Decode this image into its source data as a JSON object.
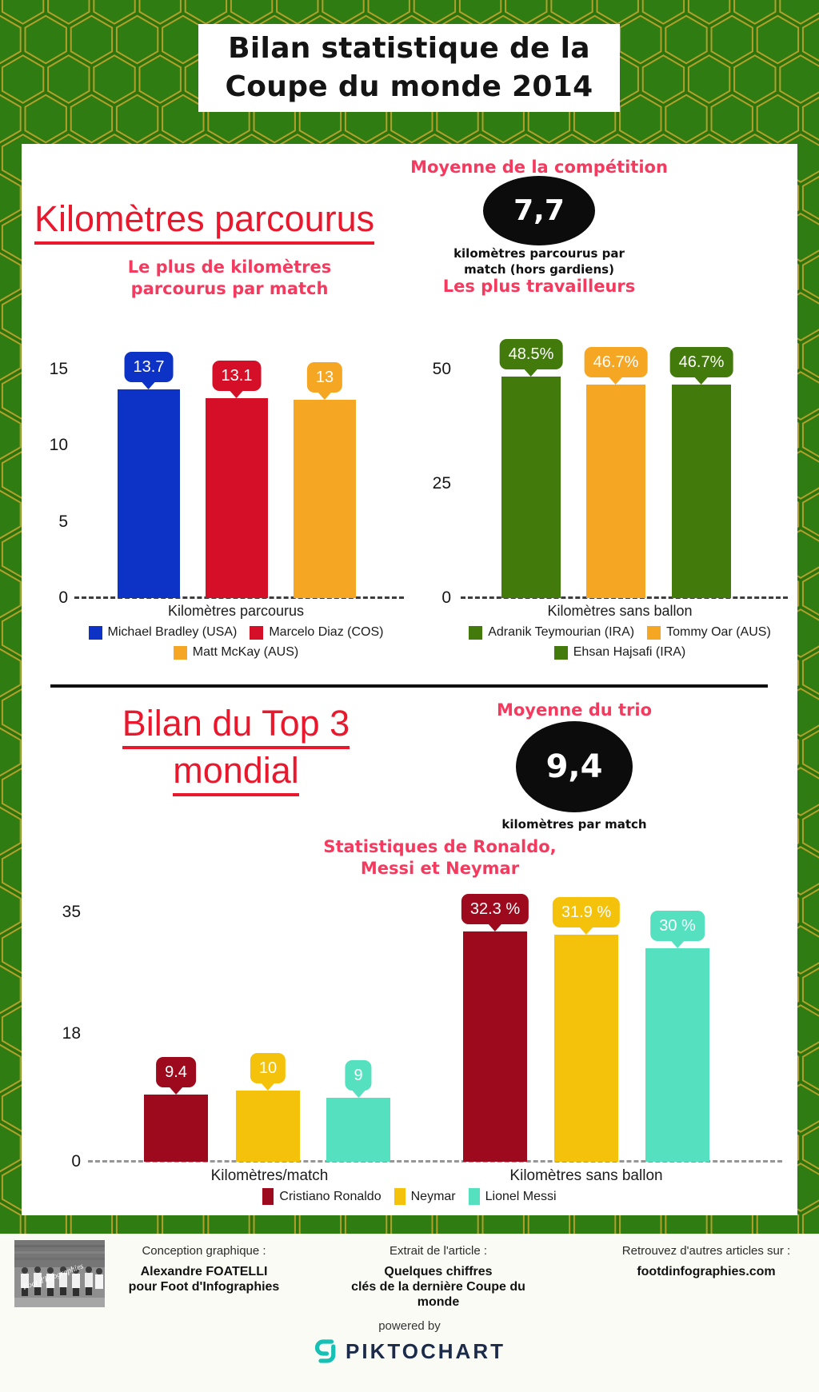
{
  "header": {
    "lines": [
      "Bilan statistique de la",
      "Coupe du monde 2014"
    ]
  },
  "section_km": {
    "heading": "Kilomètres parcourus",
    "subtitle_lines": [
      "Le plus de kilomètres",
      "parcourus par match"
    ],
    "average": {
      "title": "Moyenne de la compétition",
      "value": "7,7",
      "caption_lines": [
        "kilomètres parcourus par",
        "match (hors gardiens)"
      ]
    }
  },
  "section_top3": {
    "heading_lines": [
      "Bilan du Top 3",
      "mondial"
    ],
    "average": {
      "title": "Moyenne du trio",
      "value": "9,4",
      "caption": "kilomètres par match"
    },
    "subtitle_lines": [
      "Statistiques de Ronaldo,",
      "Messi et Neymar"
    ]
  },
  "chart_data": [
    {
      "type": "bar",
      "title": "Le plus de kilomètres parcourus par match",
      "xlabel": "Kilomètres parcourus",
      "ylabel": "",
      "ylim": [
        0,
        15
      ],
      "yticks": [
        15,
        10,
        5,
        0
      ],
      "grid": false,
      "legend_position": "bottom",
      "bars": [
        {
          "name": "Michael Bradley (USA)",
          "value": 13.7,
          "value_label": "13.7",
          "color": "#0c32c6"
        },
        {
          "name": "Marcelo Diaz (COS)",
          "value": 13.1,
          "value_label": "13.1",
          "color": "#d50f27"
        },
        {
          "name": "Matt McKay (AUS)",
          "value": 13,
          "value_label": "13",
          "color": "#f5a623"
        }
      ]
    },
    {
      "type": "bar",
      "title": "Les plus travailleurs",
      "xlabel": "Kilomètres sans ballon",
      "ylabel": "",
      "ylim": [
        0,
        50
      ],
      "yticks": [
        50,
        25,
        0
      ],
      "grid": false,
      "legend_position": "bottom",
      "bars": [
        {
          "name": "Adranik Teymourian (IRA)",
          "value": 48.5,
          "value_label": "48.5%",
          "color": "#427a0c"
        },
        {
          "name": "Tommy Oar (AUS)",
          "value": 46.7,
          "value_label": "46.7%",
          "color": "#f5a623"
        },
        {
          "name": "Ehsan Hajsafi (IRA)",
          "value": 46.7,
          "value_label": "46.7%",
          "color": "#427a0c"
        }
      ]
    },
    {
      "type": "grouped-bar",
      "title": "Statistiques de Ronaldo, Messi et Neymar",
      "ylim": [
        0,
        35
      ],
      "yticks": [
        35,
        18,
        0
      ],
      "grid": false,
      "legend_position": "bottom",
      "series": [
        {
          "name": "Cristiano Ronaldo",
          "color": "#9d0a1e"
        },
        {
          "name": "Neymar",
          "color": "#f5c20b"
        },
        {
          "name": "Lionel Messi",
          "color": "#55e1bf"
        }
      ],
      "groups": [
        {
          "label": "Kilomètres/match",
          "values": [
            9.4,
            10,
            9
          ],
          "value_labels": [
            "9.4",
            "10",
            "9"
          ]
        },
        {
          "label": "Kilomètres sans ballon",
          "values": [
            32.3,
            31.9,
            30
          ],
          "value_labels": [
            "32.3 %",
            "31.9 %",
            "30 %"
          ]
        }
      ]
    }
  ],
  "footer": {
    "photo_watermark": "Foot d'Infographies",
    "columns": [
      {
        "title": "Conception graphique :",
        "lines": [
          "Alexandre FOATELLI",
          "pour Foot d'Infographies"
        ]
      },
      {
        "title": "Extrait de l'article :",
        "lines": [
          "Quelques chiffres",
          "clés de la dernière Coupe du",
          "monde"
        ]
      },
      {
        "title": "Retrouvez d'autres articles sur :",
        "lines": [
          "footdinfographies.com"
        ]
      }
    ],
    "powered_by": "powered by",
    "brand": "PIKTOCHART"
  },
  "colors": {
    "page_green": "#2a730d",
    "hex_fill": "#2f7d12",
    "hex_stroke": "#b1a02c",
    "heading_red": "#e9182c",
    "heading_pink": "#f43b5f",
    "badge_black": "#0c0c0c",
    "bar_blue": "#0c32c6",
    "bar_red": "#d50f27",
    "bar_orange": "#f5a623",
    "bar_green": "#427a0c",
    "bar_darkred": "#9d0a1e",
    "bar_yellow": "#f5c20b",
    "bar_turquoise": "#55e1bf",
    "piktochart_teal": "#17c0b4",
    "piktochart_navy": "#1c2b4a"
  }
}
